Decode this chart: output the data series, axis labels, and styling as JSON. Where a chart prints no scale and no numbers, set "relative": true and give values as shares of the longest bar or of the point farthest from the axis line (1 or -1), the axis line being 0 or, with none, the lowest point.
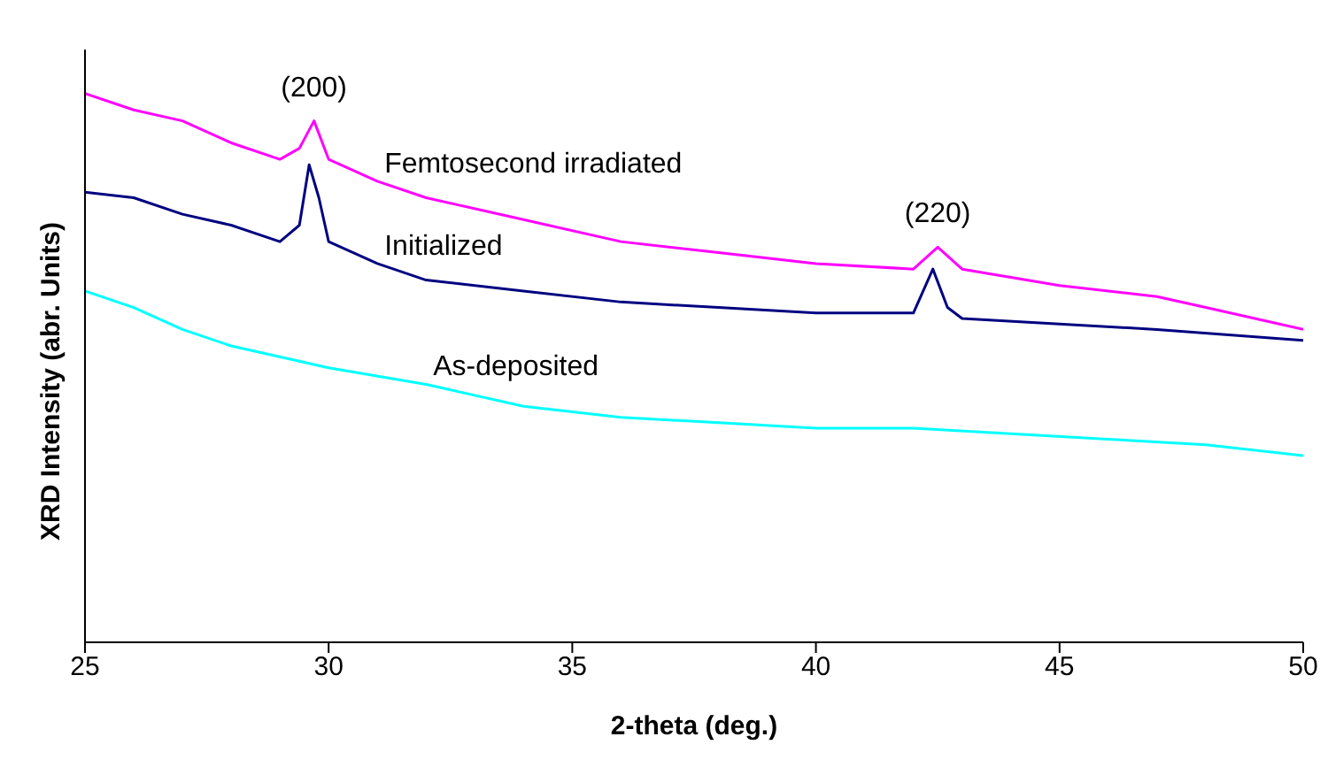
{
  "chart_data": {
    "type": "line",
    "relative": true,
    "xlabel": "2-theta (deg.)",
    "ylabel": "XRD Intensity (abr. Units)",
    "xlim": [
      25,
      50
    ],
    "xticks": [
      25,
      30,
      35,
      40,
      45,
      50
    ],
    "grid": false,
    "legend": false,
    "marker": "none",
    "line_style": "solid",
    "annotations": [
      {
        "text": "(200)",
        "x": 29.7,
        "y": 0.95
      },
      {
        "text": "(220)",
        "x": 42.5,
        "y": 0.72
      }
    ],
    "series": [
      {
        "name": "Femtosecond irradiated",
        "color": "#ff00ff",
        "x": [
          25,
          26,
          27,
          28,
          29,
          29.4,
          29.7,
          30,
          31,
          32,
          34,
          36,
          38,
          40,
          42,
          42.5,
          43,
          45,
          47,
          48,
          50
        ],
        "values": [
          1,
          0.97,
          0.95,
          0.91,
          0.88,
          0.9,
          0.95,
          0.88,
          0.84,
          0.81,
          0.77,
          0.73,
          0.71,
          0.69,
          0.68,
          0.72,
          0.68,
          0.65,
          0.63,
          0.61,
          0.57
        ]
      },
      {
        "name": "Initialized",
        "color": "#000080",
        "x": [
          25,
          26,
          27,
          28,
          29,
          29.4,
          29.6,
          29.8,
          30,
          31,
          32,
          34,
          36,
          38,
          40,
          42,
          42.4,
          42.7,
          43,
          45,
          47,
          50
        ],
        "values": [
          0.82,
          0.81,
          0.78,
          0.76,
          0.73,
          0.76,
          0.87,
          0.81,
          0.73,
          0.69,
          0.66,
          0.64,
          0.62,
          0.61,
          0.6,
          0.6,
          0.68,
          0.61,
          0.59,
          0.58,
          0.57,
          0.55
        ]
      },
      {
        "name": "As-deposited",
        "color": "#00ffff",
        "x": [
          25,
          26,
          27,
          28,
          30,
          32,
          34,
          36,
          38,
          40,
          42,
          44,
          46,
          48,
          50
        ],
        "values": [
          0.64,
          0.61,
          0.57,
          0.54,
          0.5,
          0.47,
          0.43,
          0.41,
          0.4,
          0.39,
          0.39,
          0.38,
          0.37,
          0.36,
          0.34
        ]
      }
    ]
  }
}
